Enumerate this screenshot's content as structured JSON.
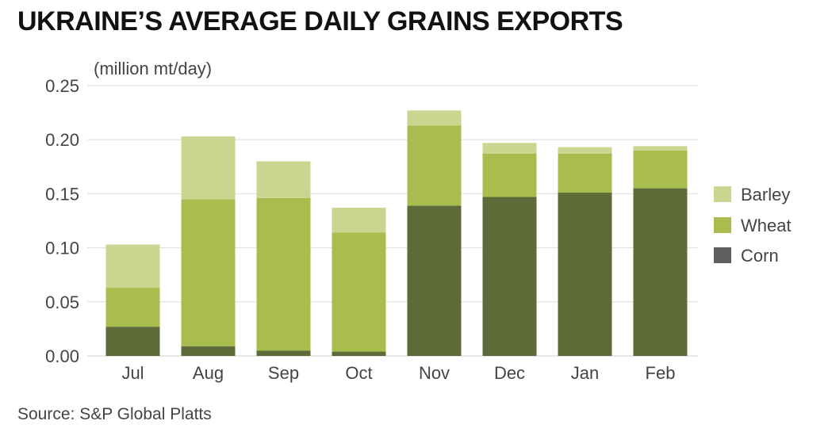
{
  "title": "UKRAINE’S AVERAGE DAILY GRAINS EXPORTS",
  "unit_label": "(million mt/day)",
  "source": "Source: S&P Global Platts",
  "colors": {
    "Barley": "#c9d690",
    "Wheat": "#a9bd4f",
    "Corn": "#5c6b37",
    "grid": "#dddddd",
    "legend_corn_swatch": "#5f5f5f"
  },
  "chart_data": {
    "type": "bar",
    "stacked": true,
    "categories": [
      "Jul",
      "Aug",
      "Sep",
      "Oct",
      "Nov",
      "Dec",
      "Jan",
      "Feb"
    ],
    "series": [
      {
        "name": "Corn",
        "values": [
          0.027,
          0.009,
          0.005,
          0.004,
          0.139,
          0.147,
          0.151,
          0.155
        ]
      },
      {
        "name": "Wheat",
        "values": [
          0.036,
          0.136,
          0.141,
          0.11,
          0.074,
          0.04,
          0.036,
          0.035
        ]
      },
      {
        "name": "Barley",
        "values": [
          0.04,
          0.058,
          0.034,
          0.023,
          0.014,
          0.01,
          0.006,
          0.004
        ]
      }
    ],
    "legend_order": [
      "Barley",
      "Wheat",
      "Corn"
    ],
    "ylim": [
      0,
      0.25
    ],
    "yticks": [
      "0.00",
      "0.05",
      "0.10",
      "0.15",
      "0.20",
      "0.25"
    ],
    "ytick_values": [
      0,
      0.05,
      0.1,
      0.15,
      0.2,
      0.25
    ],
    "grid": true,
    "legend_position": "right"
  }
}
